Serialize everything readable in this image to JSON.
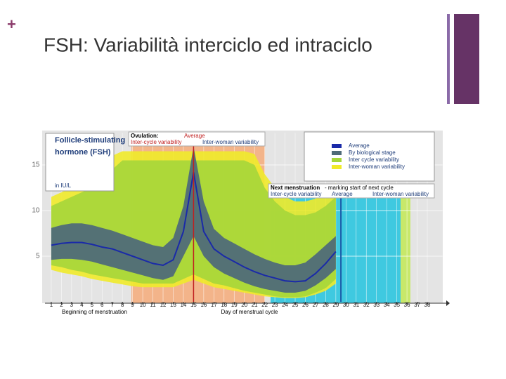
{
  "marker": "+",
  "title": "FSH: Variabilità interciclo ed intraciclo",
  "chart_data": {
    "type": "line",
    "label_title": "Follicle-stimulating hormone (FSH)",
    "y_label": "in IU/L",
    "x_label": "Day of menstrual cycle",
    "start_label": "Beginning of menstruation",
    "ovulation_title": "Ovulation:",
    "ovulation_average": "Average",
    "ovulation_cycle": "Inter-cycle variability",
    "ovulation_woman": "Inter-woman variability",
    "next_title": "Next menstruation",
    "next_note": "- marking start of next cycle",
    "next_cycle": "Inter-cycle variability",
    "next_average": "Average",
    "next_woman": "Inter-woman variability",
    "x": [
      1,
      2,
      3,
      4,
      5,
      6,
      7,
      8,
      9,
      10,
      11,
      12,
      13,
      14,
      15,
      16,
      17,
      18,
      19,
      20,
      21,
      22,
      23,
      24,
      25,
      26,
      27,
      28,
      29,
      30,
      31,
      32,
      33,
      34,
      35,
      36,
      37,
      38
    ],
    "xticks": [
      1,
      2,
      3,
      4,
      5,
      6,
      7,
      8,
      9,
      10,
      11,
      12,
      13,
      14,
      15,
      16,
      17,
      18,
      19,
      20,
      21,
      22,
      23,
      24,
      25,
      26,
      27,
      28,
      29,
      30,
      31,
      32,
      33,
      34,
      35,
      36,
      37,
      38
    ],
    "xlim": [
      0,
      39.5
    ],
    "ylim": [
      0,
      18.5
    ],
    "yticks": [
      5,
      10,
      15
    ],
    "grid": true,
    "series": [
      {
        "name": "Inter-woman variability",
        "color": "#f0ea2a",
        "values": [
          11.5,
          12,
          12.5,
          13,
          13.5,
          14.5,
          16,
          16.5,
          16.5,
          16.5,
          16.5,
          16.5,
          16.5,
          16.5,
          16.5,
          16.5,
          16.5,
          16.5,
          16.5,
          16.5,
          16.2,
          14,
          12.5,
          11.5,
          11,
          11,
          11.3,
          12,
          13,
          null,
          null,
          null,
          null,
          null,
          null,
          null,
          null,
          null
        ],
        "lower": [
          3.5,
          3.2,
          3,
          2.8,
          2.5,
          2.3,
          2.1,
          1.9,
          1.7,
          1.6,
          1.6,
          1.6,
          1.6,
          2,
          2.4,
          2,
          1.6,
          1.4,
          1.2,
          1,
          0.8,
          0.6,
          0.5,
          0.4,
          0.4,
          0.5,
          0.8,
          1.2,
          2,
          null,
          null,
          null,
          null,
          null,
          null,
          null,
          null,
          null
        ]
      },
      {
        "name": "Inter cycle variability",
        "color": "#a5d63a",
        "values": [
          10.5,
          11,
          11.5,
          12,
          12.5,
          13,
          14.5,
          15.5,
          15.5,
          15.5,
          15.5,
          15.5,
          15.5,
          15.5,
          15.5,
          15.5,
          15.5,
          15.5,
          15.5,
          15.5,
          15,
          12.5,
          11,
          10,
          9.5,
          9.5,
          9.8,
          10.5,
          11.5,
          null,
          null,
          null,
          null,
          null,
          null,
          null,
          null,
          null
        ],
        "lower": [
          4,
          3.8,
          3.5,
          3.3,
          3,
          2.8,
          2.6,
          2.4,
          2.2,
          2,
          2,
          2,
          2,
          2.5,
          3,
          2.5,
          2,
          1.8,
          1.5,
          1.2,
          1,
          0.8,
          0.6,
          0.5,
          0.5,
          0.6,
          1,
          1.5,
          2.5,
          null,
          null,
          null,
          null,
          null,
          null,
          null,
          null,
          null
        ]
      },
      {
        "name": "By biological stage",
        "color": "#4f6b78",
        "values": [
          8.1,
          8.4,
          8.6,
          8.6,
          8.4,
          8.1,
          7.8,
          7.4,
          7,
          6.6,
          6.2,
          6,
          7,
          10.5,
          17,
          11,
          8,
          7,
          6.4,
          5.8,
          5.2,
          4.7,
          4.3,
          4,
          4,
          4.3,
          5.2,
          6.2,
          7.2,
          null,
          null,
          null,
          null,
          null,
          null,
          null,
          null,
          null
        ],
        "lower": [
          4.6,
          4.7,
          4.7,
          4.6,
          4.4,
          4.1,
          3.8,
          3.5,
          3.2,
          2.9,
          2.6,
          2.4,
          2.8,
          5,
          7.2,
          5,
          3.8,
          3.1,
          2.6,
          2.1,
          1.7,
          1.4,
          1.2,
          1,
          1,
          1.2,
          1.8,
          2.6,
          3.6,
          null,
          null,
          null,
          null,
          null,
          null,
          null,
          null,
          null
        ]
      },
      {
        "name": "Average",
        "color": "#1a2aa8",
        "values": [
          6.2,
          6.4,
          6.5,
          6.5,
          6.3,
          6,
          5.8,
          5.4,
          5,
          4.6,
          4.2,
          4,
          4.6,
          7.7,
          14.2,
          7.7,
          5.8,
          5,
          4.4,
          3.8,
          3.3,
          2.9,
          2.6,
          2.3,
          2.2,
          2.3,
          3.1,
          4.2,
          5.5,
          null,
          null,
          null,
          null,
          null,
          null,
          null,
          null,
          null
        ]
      }
    ]
  }
}
